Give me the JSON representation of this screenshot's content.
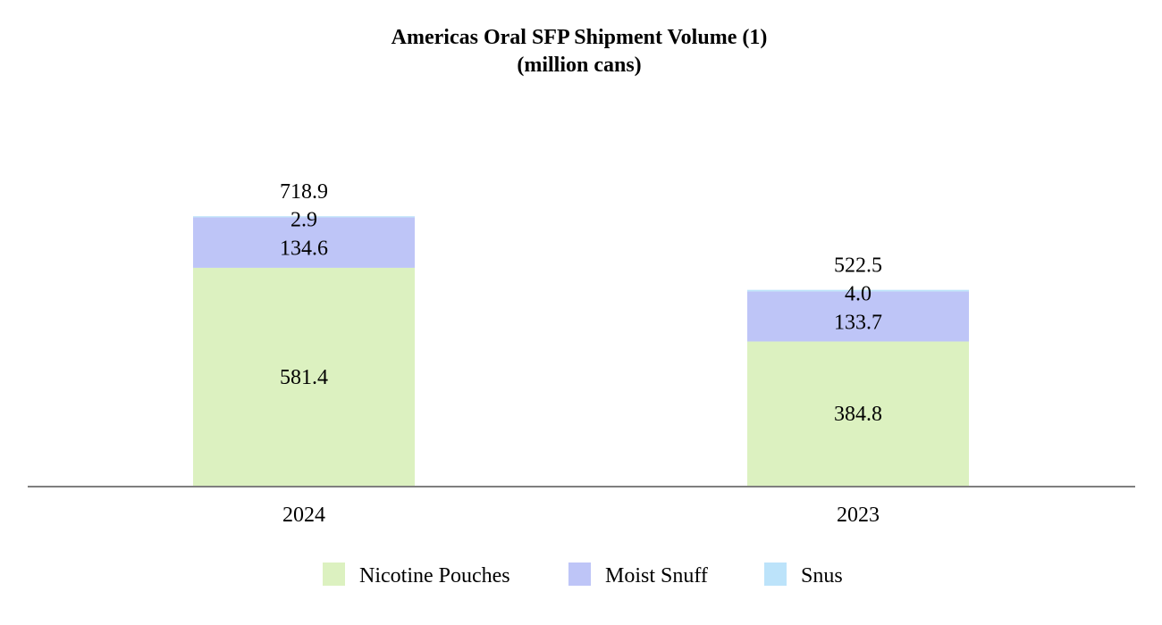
{
  "chart_data": {
    "type": "bar",
    "stacked": true,
    "title": "Americas Oral SFP Shipment Volume (1)",
    "subtitle": "(million cans)",
    "xlabel": "",
    "ylabel": "",
    "categories": [
      "2024",
      "2023"
    ],
    "series": [
      {
        "name": "Nicotine Pouches",
        "values": [
          581.4,
          384.8
        ],
        "labels": [
          "581.4",
          "384.8"
        ],
        "color": "#DCF1C0"
      },
      {
        "name": "Moist Snuff",
        "values": [
          134.6,
          133.7
        ],
        "labels": [
          "134.6",
          "133.7"
        ],
        "color": "#BEC5F7"
      },
      {
        "name": "Snus",
        "values": [
          2.9,
          4.0
        ],
        "labels": [
          "2.9",
          "4.0"
        ],
        "color": "#BCE3FA"
      }
    ],
    "totals": [
      718.9,
      522.5
    ],
    "total_labels": [
      "718.9",
      "522.5"
    ],
    "ylim": [
      0,
      1000
    ],
    "grid": false,
    "legend_position": "bottom-center",
    "axis_color": "#7F7F7F"
  }
}
